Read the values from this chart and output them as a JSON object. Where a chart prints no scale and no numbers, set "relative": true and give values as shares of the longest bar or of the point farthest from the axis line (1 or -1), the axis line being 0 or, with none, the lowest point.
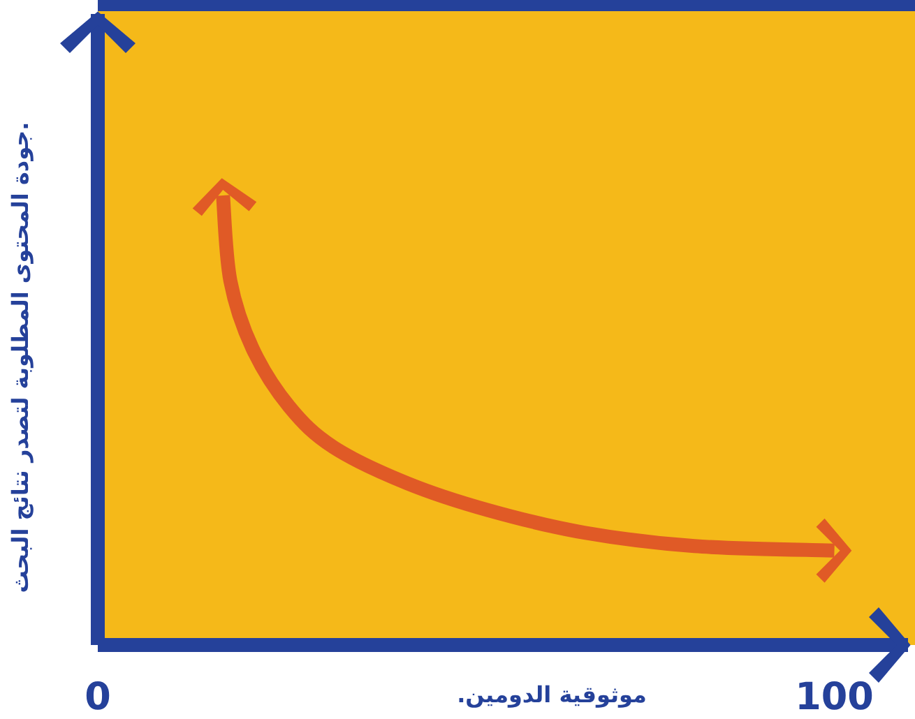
{
  "chart_data": {
    "type": "line",
    "relative": true,
    "xlabel": "موثوقية الدومين.",
    "ylabel": "جودة المحتوى المطلوبة لتصدر نتائج البحث.",
    "xlim": [
      0,
      110
    ],
    "xticks": [
      0,
      100
    ],
    "x": [
      17,
      18,
      21,
      26,
      32,
      42,
      53,
      66,
      81,
      100
    ],
    "series": [
      {
        "color": "#e05a26",
        "values": [
          1,
          0.81,
          0.66,
          0.53,
          0.44,
          0.36,
          0.3,
          0.25,
          0.22,
          0.21
        ]
      }
    ]
  }
}
